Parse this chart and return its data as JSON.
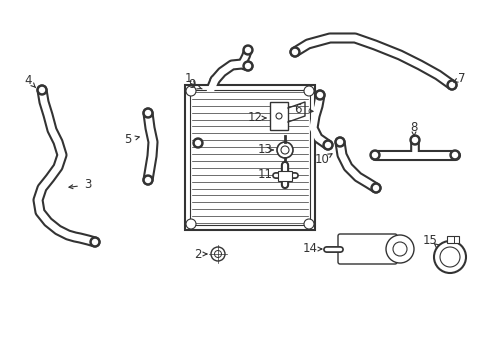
{
  "background_color": "#ffffff",
  "line_color": "#333333",
  "figsize": [
    4.89,
    3.6
  ],
  "dpi": 100,
  "xlim": [
    0,
    489
  ],
  "ylim": [
    0,
    360
  ]
}
